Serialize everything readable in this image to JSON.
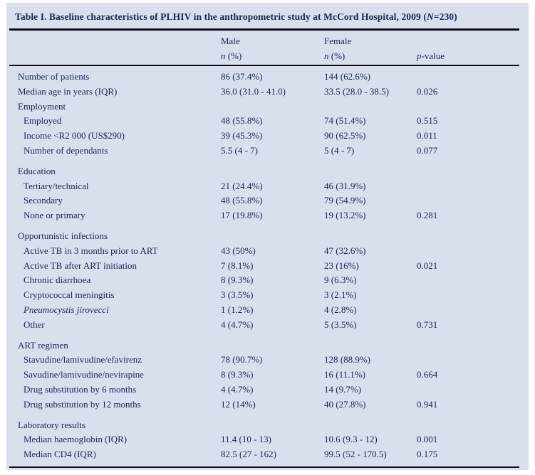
{
  "colors": {
    "panel_bg": "#d9dfed",
    "text": "#1c2553",
    "rule": "#0d0d1a"
  },
  "title": {
    "prefix": "Table I. Baseline characteristics of PLHIV in the anthropometric study at McCord Hospital, 2009 (",
    "n_italic": "N",
    "suffix": "=230)"
  },
  "header": {
    "male": "Male",
    "female": "Female",
    "n_italic": "n",
    "n_rest": " (%)",
    "p_italic": "p",
    "p_rest": "-value"
  },
  "table": {
    "rows": [
      {
        "label": "Number of patients",
        "male": "86 (37.4%)",
        "female": "144 (62.6%)",
        "p": ""
      },
      {
        "label": "Median age in years (IQR)",
        "male": "36.0 (31.0 - 41.0)",
        "female": "33.5 (28.0 - 38.5)",
        "p": "0.026"
      },
      {
        "label": "Employment",
        "male": "",
        "female": "",
        "p": "",
        "section": true
      },
      {
        "label": "Employed",
        "male": "48 (55.8%)",
        "female": "74 (51.4%)",
        "p": "0.515",
        "indent": true
      },
      {
        "label": "Income <R2 000 (US$290)",
        "male": "39 (45.3%)",
        "female": "90 (62.5%)",
        "p": "0.011",
        "indent": true
      },
      {
        "label": "Number of dependants",
        "male": "5.5 (4 - 7)",
        "female": "5 (4 - 7)",
        "p": "0.077",
        "indent": true
      },
      {
        "label": "Education",
        "male": "",
        "female": "",
        "p": "",
        "section": true,
        "gap": true
      },
      {
        "label": "Tertiary/technical",
        "male": "21 (24.4%)",
        "female": "46 (31.9%)",
        "p": "",
        "indent": true
      },
      {
        "label": "Secondary",
        "male": "48 (55.8%)",
        "female": "79 (54.9%)",
        "p": "",
        "indent": true
      },
      {
        "label": "None or primary",
        "male": "17 (19.8%)",
        "female": "19 (13.2%)",
        "p": "0.281",
        "indent": true
      },
      {
        "label": "Opportunistic infections",
        "male": "",
        "female": "",
        "p": "",
        "section": true,
        "gap": true
      },
      {
        "label": "Active TB in 3 months prior to ART",
        "male": "43 (50%)",
        "female": "47 (32.6%)",
        "p": "",
        "indent": true
      },
      {
        "label": "Active TB after ART initiation",
        "male": "7 (8.1%)",
        "female": "23 (16%)",
        "p": "0.021",
        "indent": true
      },
      {
        "label": "Chronic diarrhoea",
        "male": "8 (9.3%)",
        "female": "9 (6.3%)",
        "p": "",
        "indent": true
      },
      {
        "label": "Cryptococcal meningitis",
        "male": "3 (3.5%)",
        "female": "3 (2.1%)",
        "p": "",
        "indent": true
      },
      {
        "label": "Pneumocystis jirovecci",
        "male": "1 (1.2%)",
        "female": "4 (2.8%)",
        "p": "",
        "indent": true,
        "italic": true
      },
      {
        "label": "Other",
        "male": "4 (4.7%)",
        "female": "5 (3.5%)",
        "p": "0.731",
        "indent": true
      },
      {
        "label": "ART regimen",
        "male": "",
        "female": "",
        "p": "",
        "section": true,
        "gap": true
      },
      {
        "label": "Stavudine/lamivudine/efavirenz",
        "male": "78 (90.7%)",
        "female": "128 (88.9%)",
        "p": "",
        "indent": true
      },
      {
        "label": "Savudine/lamivudine/nevirapine",
        "male": "8 (9.3%)",
        "female": "16 (11.1%)",
        "p": "0.664",
        "indent": true
      },
      {
        "label": "Drug substitution by 6 months",
        "male": "4 (4.7%)",
        "female": "14 (9.7%)",
        "p": "",
        "indent": true
      },
      {
        "label": "Drug substitution by 12 months",
        "male": "12 (14%)",
        "female": "40 (27.8%)",
        "p": "0.941",
        "indent": true
      },
      {
        "label": "Laboratory results",
        "male": "",
        "female": "",
        "p": "",
        "section": true,
        "gap": true
      },
      {
        "label": "Median haemoglobin (IQR)",
        "male": "11.4 (10 - 13)",
        "female": "10.6 (9.3 - 12)",
        "p": "0.001",
        "indent": true
      },
      {
        "label": "Median CD4 (IQR)",
        "male": "82.5 (27 - 162)",
        "female": "99.5 (52 - 170.5)",
        "p": "0.175",
        "indent": true
      }
    ]
  }
}
